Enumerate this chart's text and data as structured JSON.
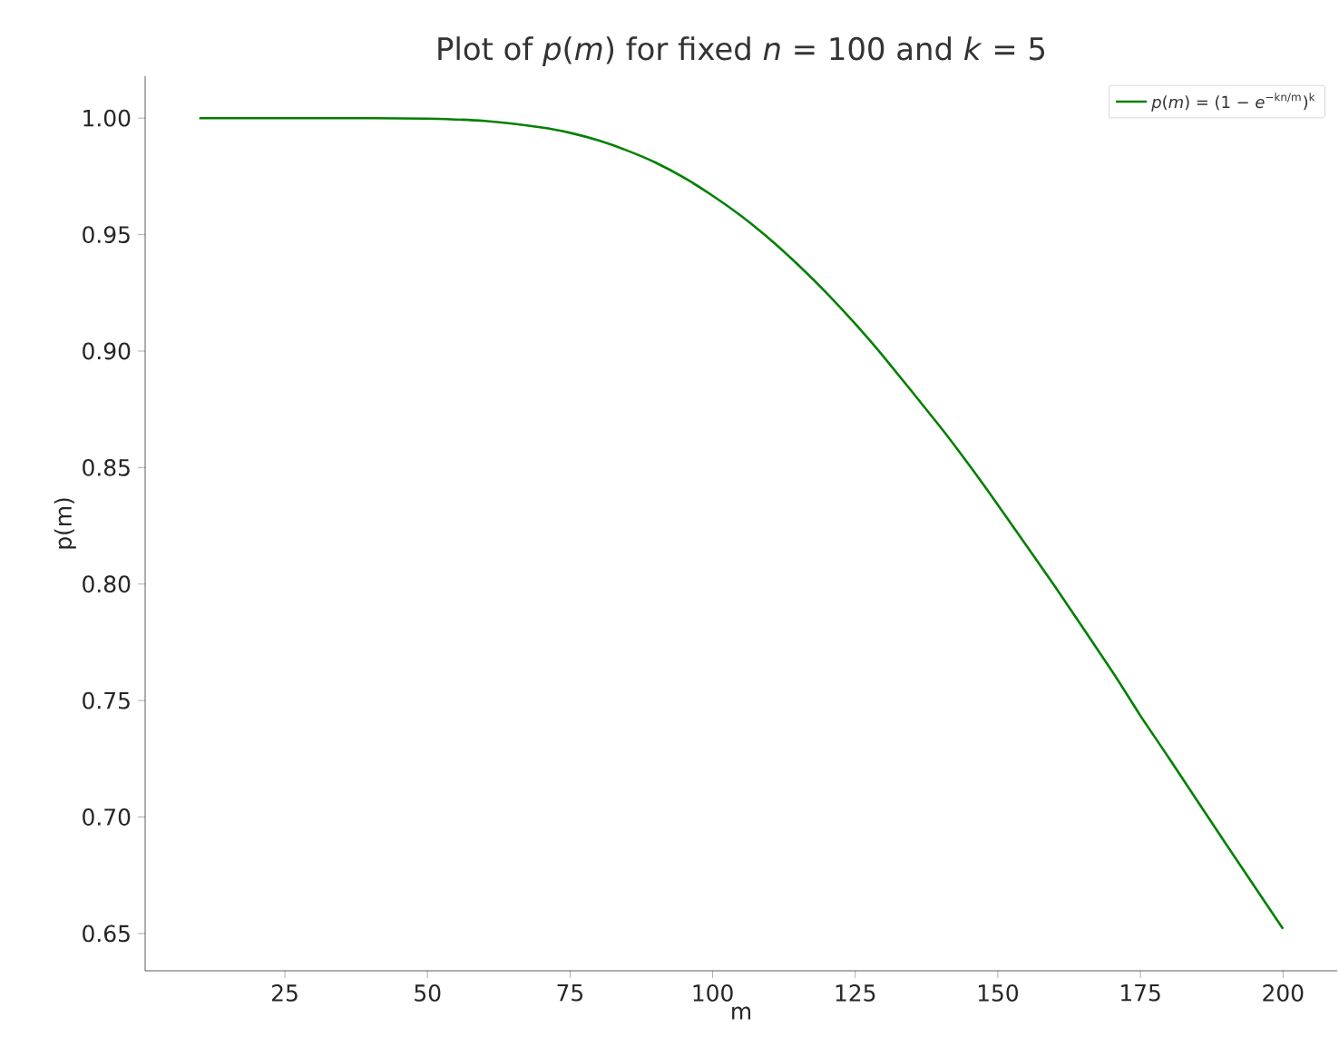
{
  "chart_data": {
    "type": "line",
    "title": "Plot of *p*(*m*) for fixed *n* = 100 and *k* = 5",
    "xlabel": "m",
    "ylabel": "p(m)",
    "x": [
      10,
      20,
      30,
      40,
      50,
      60,
      70,
      75,
      80,
      85,
      90,
      95,
      100,
      105,
      110,
      115,
      120,
      125,
      130,
      140,
      145,
      150,
      160,
      170,
      175,
      180,
      190,
      200
    ],
    "series": [
      {
        "name": "*p*(*m*) = (1 − *e*$^{−kn/m}$)$^{k}$",
        "color": "#008000",
        "values": [
          1.0,
          1.0,
          1.0,
          1.0,
          0.9998,
          0.9988,
          0.996,
          0.9937,
          0.9904,
          0.9861,
          0.9809,
          0.9744,
          0.9667,
          0.958,
          0.9481,
          0.937,
          0.9249,
          0.9117,
          0.8975,
          0.8672,
          0.851,
          0.834,
          0.799,
          0.7627,
          0.7435,
          0.7253,
          0.6884,
          0.652
        ]
      }
    ],
    "xlim": [
      0.5,
      209.5
    ],
    "ylim": [
      0.634,
      1.018
    ],
    "xticks": [
      25,
      50,
      75,
      100,
      125,
      150,
      175,
      200
    ],
    "yticks": [
      {
        "value": 0.65,
        "label": "0.65"
      },
      {
        "value": 0.7,
        "label": "0.70"
      },
      {
        "value": 0.75,
        "label": "0.75"
      },
      {
        "value": 0.8,
        "label": "0.80"
      },
      {
        "value": 0.85,
        "label": "0.85"
      },
      {
        "value": 0.9,
        "label": "0.90"
      },
      {
        "value": 0.95,
        "label": "0.95"
      },
      {
        "value": 1.0,
        "label": "1.00"
      }
    ],
    "legend": "top right",
    "grid": false,
    "marker": "none",
    "line_style": "solid"
  }
}
